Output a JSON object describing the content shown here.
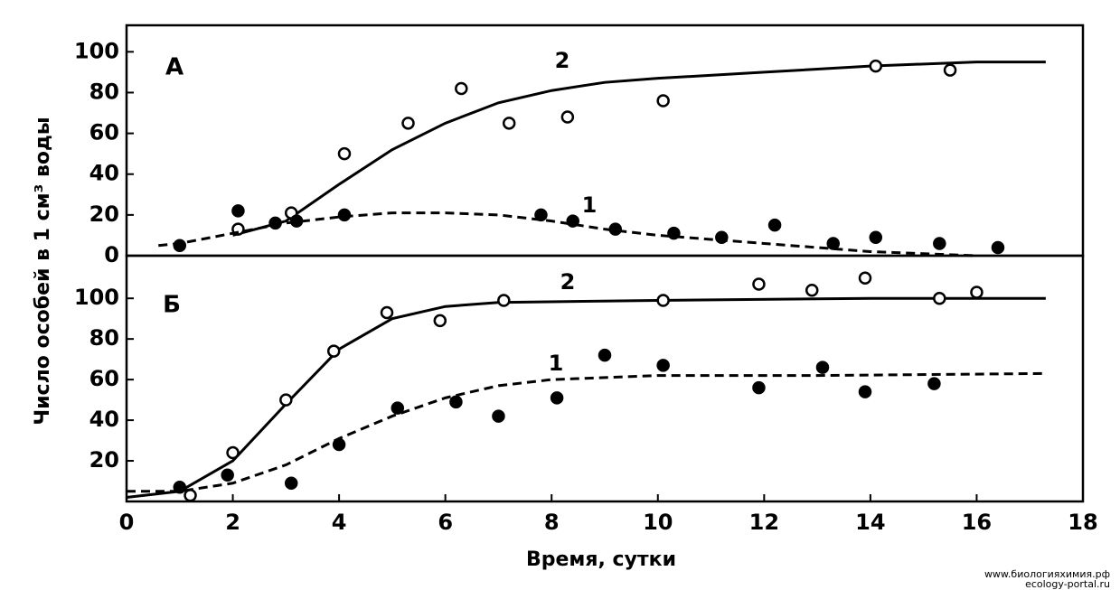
{
  "chart_data": [
    {
      "type": "scatter",
      "panel_label": "А",
      "xlim": [
        0,
        18
      ],
      "ylim": [
        0,
        113
      ],
      "yticks": [
        0,
        20,
        40,
        60,
        80,
        100
      ],
      "y_label": "Число особей в 1 см³ воды",
      "series": [
        {
          "name": "2",
          "color": "#000000",
          "marker": "open",
          "dash": false,
          "x": [
            2.1,
            3.1,
            4.1,
            5.3,
            6.3,
            7.2,
            8.3,
            10.1,
            14.1,
            15.5
          ],
          "values": [
            13,
            21,
            50,
            65,
            82,
            65,
            68,
            76,
            93,
            91
          ],
          "curve_x": [
            2,
            3,
            4,
            5,
            6,
            7,
            8,
            9,
            10,
            12,
            14,
            16,
            17.3
          ],
          "curve_values": [
            10,
            17,
            35,
            52,
            65,
            75,
            81,
            85,
            87,
            90,
            93,
            95,
            95
          ]
        },
        {
          "name": "1",
          "color": "#000000",
          "marker": "filled",
          "dash": true,
          "x": [
            1,
            2.1,
            2.8,
            3.2,
            4.1,
            7.8,
            8.4,
            9.2,
            10.3,
            11.2,
            12.2,
            13.3,
            14.1,
            15.3,
            16.4
          ],
          "values": [
            5,
            22,
            16,
            17,
            20,
            20,
            17,
            13,
            11,
            9,
            15,
            6,
            9,
            6,
            4
          ],
          "curve_x": [
            0.6,
            1,
            2,
            3,
            4,
            5,
            6,
            7,
            8,
            9,
            10,
            11,
            12,
            13,
            14,
            15,
            16
          ],
          "curve_values": [
            5,
            6,
            11,
            16,
            19,
            21,
            21,
            20,
            17,
            13,
            10,
            8,
            6,
            4,
            2,
            1,
            0
          ]
        }
      ]
    },
    {
      "type": "scatter",
      "panel_label": "Б",
      "xlim": [
        0,
        18
      ],
      "ylim": [
        0,
        121
      ],
      "yticks": [
        20,
        40,
        60,
        80,
        100
      ],
      "xticks": [
        0,
        2,
        4,
        6,
        8,
        10,
        12,
        14,
        16,
        18
      ],
      "x_label": "Время, сутки",
      "series": [
        {
          "name": "2",
          "color": "#000000",
          "marker": "open",
          "dash": false,
          "x": [
            1.2,
            2,
            3,
            3.9,
            4.9,
            5.9,
            7.1,
            10.1,
            11.9,
            12.9,
            13.9,
            15.3,
            16
          ],
          "values": [
            3,
            24,
            50,
            74,
            93,
            89,
            99,
            99,
            107,
            104,
            110,
            100,
            103
          ],
          "curve_x": [
            0,
            1,
            2,
            3,
            4,
            5,
            6,
            7,
            10,
            14,
            17.3
          ],
          "curve_values": [
            2,
            5,
            20,
            48,
            75,
            90,
            96,
            98,
            99,
            100,
            100
          ]
        },
        {
          "name": "1",
          "color": "#000000",
          "marker": "filled",
          "dash": true,
          "x": [
            1,
            1.9,
            3.1,
            4,
            5.1,
            6.2,
            7,
            8.1,
            9,
            10.1,
            11.9,
            13.1,
            13.9,
            15.2
          ],
          "values": [
            7,
            13,
            9,
            28,
            46,
            49,
            42,
            51,
            72,
            67,
            56,
            66,
            54,
            58
          ],
          "curve_x": [
            0,
            1,
            2,
            3,
            4,
            5,
            6,
            7,
            8,
            9,
            10,
            13,
            17.3
          ],
          "curve_values": [
            5,
            5,
            9,
            18,
            31,
            42,
            51,
            57,
            60,
            61,
            62,
            62,
            63
          ]
        }
      ]
    }
  ],
  "watermark": [
    "www.биологияхимия.рф",
    "ecology-portal.ru"
  ]
}
